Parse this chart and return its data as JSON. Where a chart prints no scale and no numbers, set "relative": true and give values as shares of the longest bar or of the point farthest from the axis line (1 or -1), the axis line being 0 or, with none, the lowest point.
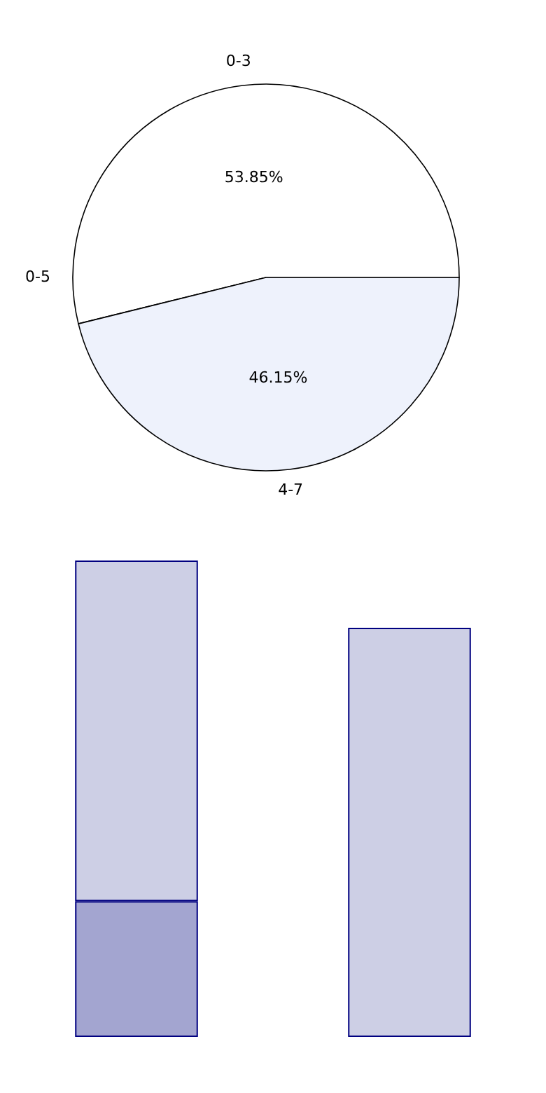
{
  "chart_data": [
    {
      "type": "pie",
      "categories": [
        "0-3",
        "4-7"
      ],
      "values": [
        53.85,
        46.15
      ],
      "colors": [
        "#ffffff",
        "#eef2fc"
      ],
      "value_labels": [
        "53.85%",
        "46.15%"
      ],
      "annotations": [
        "0-5"
      ],
      "legend": false
    },
    {
      "type": "bar",
      "relative": true,
      "stacked": true,
      "categories": [
        null,
        null
      ],
      "legend": false,
      "series": [
        {
          "color": "#a3a5d0",
          "values": [
            0.285,
            null
          ]
        },
        {
          "color": "#cdcfe5",
          "values": [
            0.715,
            0.859
          ]
        }
      ]
    }
  ]
}
